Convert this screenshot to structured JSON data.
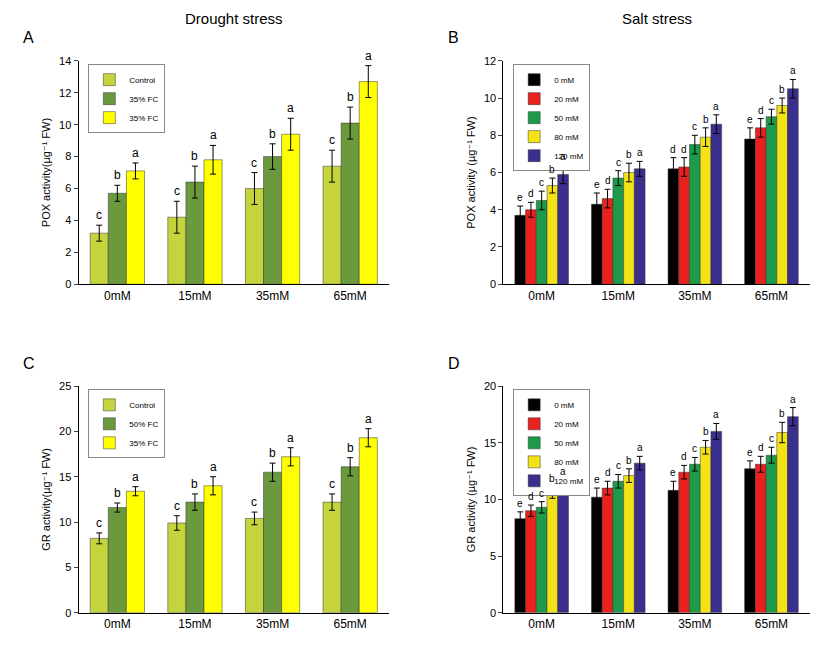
{
  "chart_data": [
    {
      "panel": "A",
      "title": "Drought stress",
      "type": "bar",
      "grid": false,
      "legend": "upper left",
      "categories": [
        "0mM",
        "15mM",
        "35mM",
        "65mM"
      ],
      "ylabel": "POX activity(µg⁻¹ FW)",
      "ylim": [
        0,
        14
      ],
      "yticks": [
        0,
        2,
        4,
        6,
        8,
        10,
        12,
        14
      ],
      "series": [
        {
          "name": "Control",
          "color": "#c5d43c",
          "values": [
            3.2,
            4.2,
            6.0,
            7.4
          ],
          "error": [
            0.5,
            1.0,
            1.0,
            1.0
          ],
          "letters": [
            "c",
            "c",
            "c",
            "c"
          ]
        },
        {
          "name": "35% FC",
          "color": "#6b9a3e",
          "values": [
            5.7,
            6.4,
            8.0,
            10.1
          ],
          "error": [
            0.5,
            1.0,
            0.8,
            1.0
          ],
          "letters": [
            "b",
            "b",
            "b",
            "b"
          ]
        },
        {
          "name": "35% FC",
          "color": "#ffff00",
          "values": [
            7.1,
            7.8,
            9.4,
            12.7
          ],
          "error": [
            0.5,
            0.9,
            1.0,
            1.0
          ],
          "letters": [
            "a",
            "a",
            "a",
            "a"
          ]
        }
      ]
    },
    {
      "panel": "B",
      "title": "Salt stress",
      "type": "bar",
      "grid": false,
      "legend": "upper left",
      "categories": [
        "0mM",
        "15mM",
        "35mM",
        "65mM"
      ],
      "ylabel": "POX activity (µg⁻¹ FW)",
      "ylim": [
        0,
        12
      ],
      "yticks": [
        0,
        2,
        4,
        6,
        8,
        10,
        12
      ],
      "series": [
        {
          "name": "0 mM",
          "color": "#000000",
          "values": [
            3.7,
            4.3,
            6.2,
            7.8
          ],
          "error": [
            0.5,
            0.6,
            0.6,
            0.6
          ],
          "letters": [
            "e",
            "e",
            "d",
            "e"
          ]
        },
        {
          "name": "20 mM",
          "color": "#e8221e",
          "values": [
            4.0,
            4.6,
            6.3,
            8.4
          ],
          "error": [
            0.4,
            0.5,
            0.5,
            0.5
          ],
          "letters": [
            "d",
            "d",
            "d",
            "d"
          ]
        },
        {
          "name": "50 mM",
          "color": "#1d9a4a",
          "values": [
            4.5,
            5.7,
            7.5,
            9.0
          ],
          "error": [
            0.5,
            0.4,
            0.5,
            0.4
          ],
          "letters": [
            "c",
            "c",
            "c",
            "c"
          ]
        },
        {
          "name": "80 mM",
          "color": "#f3e316",
          "values": [
            5.3,
            6.0,
            7.9,
            9.6
          ],
          "error": [
            0.4,
            0.5,
            0.5,
            0.4
          ],
          "letters": [
            "b",
            "b",
            "b",
            "b"
          ]
        },
        {
          "name": "120 mM",
          "color": "#3b2f8e",
          "values": [
            5.9,
            6.2,
            8.6,
            10.5
          ],
          "error": [
            0.5,
            0.4,
            0.5,
            0.5
          ],
          "letters": [
            "a",
            "a",
            "a",
            "a"
          ]
        }
      ]
    },
    {
      "panel": "C",
      "type": "bar",
      "grid": false,
      "legend": "upper left",
      "categories": [
        "0mM",
        "15mM",
        "35mM",
        "65mM"
      ],
      "ylabel": "GR activity(µg⁻¹ FW)",
      "ylim": [
        0,
        25
      ],
      "yticks": [
        0,
        5,
        10,
        15,
        20,
        25
      ],
      "series": [
        {
          "name": "Control",
          "color": "#c5d43c",
          "values": [
            8.2,
            9.9,
            10.4,
            12.2
          ],
          "error": [
            0.6,
            0.8,
            0.7,
            0.9
          ],
          "letters": [
            "c",
            "c",
            "c",
            "c"
          ]
        },
        {
          "name": "50% FC",
          "color": "#6b9a3e",
          "values": [
            11.6,
            12.2,
            15.5,
            16.1
          ],
          "error": [
            0.5,
            0.9,
            1.0,
            1.0
          ],
          "letters": [
            "b",
            "b",
            "b",
            "b"
          ]
        },
        {
          "name": "35% FC",
          "color": "#ffff00",
          "values": [
            13.4,
            14.0,
            17.2,
            19.3
          ],
          "error": [
            0.5,
            1.0,
            1.0,
            1.0
          ],
          "letters": [
            "a",
            "a",
            "a",
            "a"
          ]
        }
      ]
    },
    {
      "panel": "D",
      "type": "bar",
      "grid": false,
      "legend": "upper left",
      "categories": [
        "0mM",
        "15mM",
        "35mM",
        "65mM"
      ],
      "ylabel": "GR activity (µg⁻¹ FW)",
      "ylim": [
        0,
        20
      ],
      "yticks": [
        0,
        5,
        10,
        15,
        20
      ],
      "series": [
        {
          "name": "0 mM",
          "color": "#000000",
          "values": [
            8.3,
            10.2,
            10.8,
            12.7
          ],
          "error": [
            0.6,
            0.8,
            0.8,
            0.7
          ],
          "letters": [
            "e",
            "e",
            "e",
            "e"
          ]
        },
        {
          "name": "20 mM",
          "color": "#e8221e",
          "values": [
            9.0,
            11.0,
            12.4,
            13.1
          ],
          "error": [
            0.5,
            0.6,
            0.6,
            0.7
          ],
          "letters": [
            "d",
            "d",
            "d",
            "d"
          ]
        },
        {
          "name": "50 mM",
          "color": "#1d9a4a",
          "values": [
            9.3,
            11.6,
            13.1,
            13.9
          ],
          "error": [
            0.5,
            0.6,
            0.6,
            0.7
          ],
          "letters": [
            "c",
            "c",
            "c",
            "c"
          ]
        },
        {
          "name": "80 mM",
          "color": "#f3e316",
          "values": [
            10.6,
            12.1,
            14.6,
            15.9
          ],
          "error": [
            0.5,
            0.6,
            0.6,
            0.9
          ],
          "letters": [
            "b",
            "b",
            "b",
            "b"
          ]
        },
        {
          "name": "120 mM",
          "color": "#3b2f8e",
          "values": [
            11.2,
            13.2,
            16.0,
            17.3
          ],
          "error": [
            0.5,
            0.6,
            0.7,
            0.8
          ],
          "letters": [
            "a",
            "a",
            "a",
            "a"
          ]
        }
      ]
    }
  ]
}
